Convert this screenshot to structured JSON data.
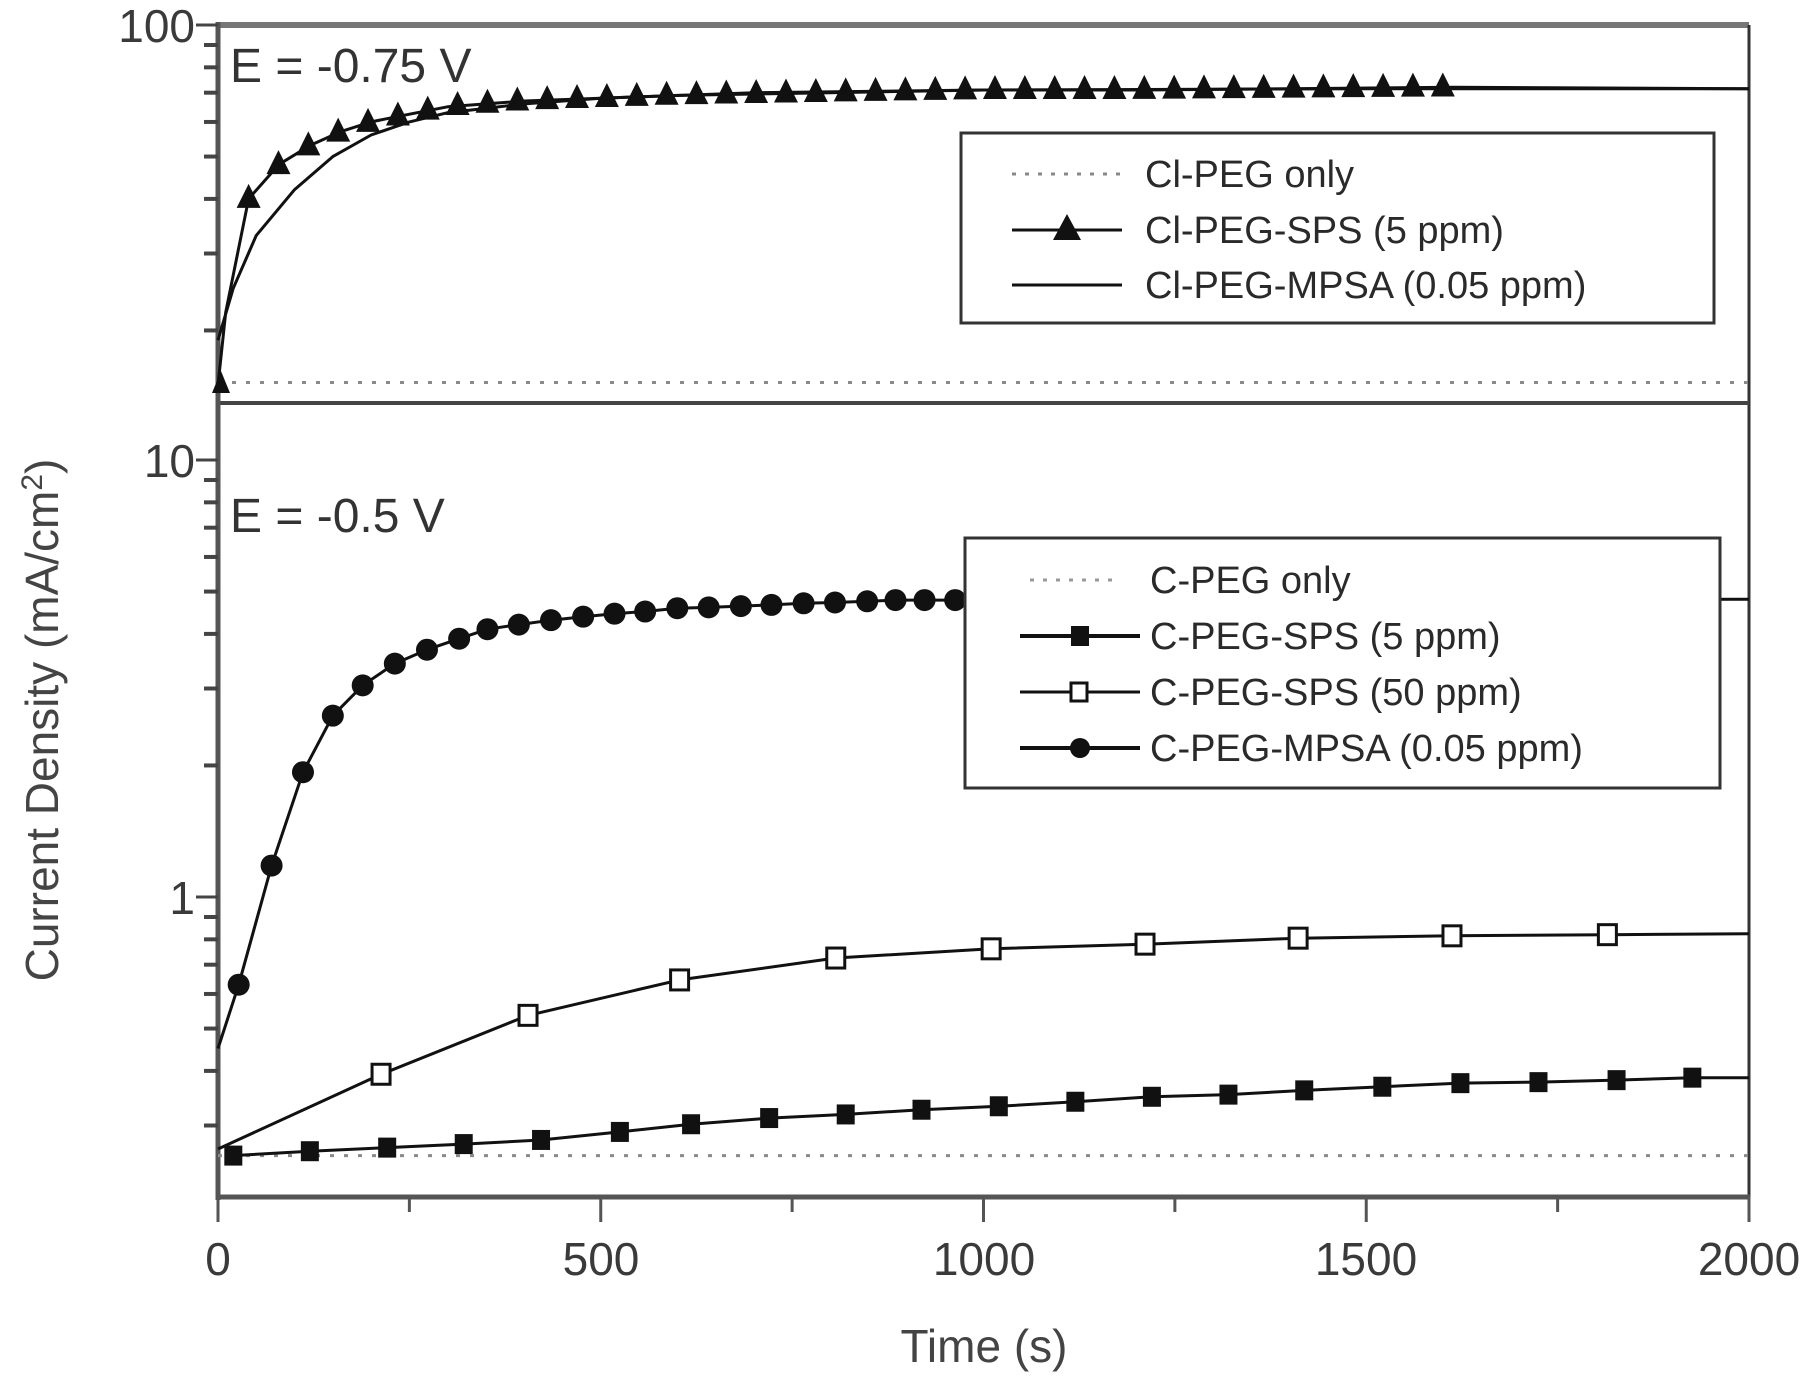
{
  "chart_data": [
    {
      "type": "line",
      "panel": "top",
      "annotation": "E = -0.75 V",
      "xlabel": "Time (s)",
      "ylabel": "Current Density (mA/cm²)",
      "yscale": "log",
      "xlim": [
        0,
        2000
      ],
      "ylim": [
        13.5,
        100
      ],
      "y_ticks": [
        "100"
      ],
      "legend_position": "upper right (inside, below plateau)",
      "series": [
        {
          "name": "Cl-PEG only",
          "style": "dotted",
          "marker": "none",
          "x": [
            0,
            2000
          ],
          "y": [
            15.2,
            15.2
          ]
        },
        {
          "name": "Cl-PEG-SPS (5 ppm)",
          "style": "solid",
          "marker": "filled-triangle",
          "x": [
            0,
            10,
            40,
            80,
            120,
            160,
            200,
            240,
            300,
            400,
            500,
            600,
            800,
            1000,
            1200,
            1400,
            1615,
            2000
          ],
          "y": [
            15,
            22,
            40,
            48,
            53,
            57,
            60,
            62,
            65,
            67,
            68,
            69,
            70,
            71,
            71,
            71.5,
            72,
            71.5
          ]
        },
        {
          "name": "Cl-PEG-MPSA (0.05 ppm)",
          "style": "solid",
          "marker": "none",
          "x": [
            0,
            20,
            50,
            100,
            150,
            200,
            250,
            300,
            400,
            500,
            700,
            1000,
            1500,
            2000
          ],
          "y": [
            19,
            25,
            33,
            42,
            50,
            56,
            60,
            63,
            66,
            68,
            70,
            71,
            71.5,
            71.5
          ]
        }
      ]
    },
    {
      "type": "line",
      "panel": "bottom",
      "annotation": "E = -0.5 V",
      "xlabel": "Time (s)",
      "ylabel": "Current Density (mA/cm²)",
      "yscale": "log",
      "xlim": [
        0,
        2000
      ],
      "ylim": [
        0.2,
        13.5
      ],
      "x_ticks": [
        "0",
        "500",
        "1000",
        "1500",
        "2000"
      ],
      "y_ticks": [
        "10",
        "1"
      ],
      "legend_position": "upper right",
      "series": [
        {
          "name": "C-PEG only",
          "style": "dotted",
          "marker": "none",
          "x": [
            0,
            2000
          ],
          "y": [
            0.256,
            0.256
          ]
        },
        {
          "name": "C-PEG-SPS (5 ppm)",
          "style": "solid",
          "marker": "filled-square",
          "x": [
            20,
            120,
            221,
            321,
            422,
            525,
            618,
            720,
            820,
            919,
            1020,
            1120,
            1220,
            1320,
            1419,
            1521,
            1623,
            1725,
            1827,
            1926,
            2000
          ],
          "y": [
            0.256,
            0.262,
            0.267,
            0.272,
            0.278,
            0.29,
            0.302,
            0.312,
            0.318,
            0.326,
            0.332,
            0.34,
            0.349,
            0.353,
            0.361,
            0.368,
            0.375,
            0.377,
            0.381,
            0.386,
            0.386
          ]
        },
        {
          "name": "C-PEG-SPS (50 ppm)",
          "style": "solid",
          "marker": "open-square",
          "x": [
            0,
            213,
            405,
            603,
            807,
            1010,
            1211,
            1411,
            1612,
            1815,
            2000
          ],
          "y": [
            0.265,
            0.393,
            0.536,
            0.646,
            0.725,
            0.761,
            0.78,
            0.805,
            0.815,
            0.82,
            0.824
          ]
        },
        {
          "name": "C-PEG-MPSA (0.05 ppm)",
          "style": "solid",
          "marker": "filled-circle",
          "x": [
            0,
            27,
            70,
            111,
            150,
            189,
            231,
            273,
            315,
            352,
            393,
            435,
            477,
            518,
            558,
            600,
            641,
            683,
            723,
            765,
            806,
            848,
            885,
            923,
            963,
            2000
          ],
          "y": [
            0.45,
            0.63,
            1.18,
            1.93,
            2.6,
            3.05,
            3.42,
            3.68,
            3.9,
            4.1,
            4.2,
            4.3,
            4.38,
            4.45,
            4.5,
            4.58,
            4.6,
            4.63,
            4.66,
            4.7,
            4.72,
            4.75,
            4.78,
            4.78,
            4.78,
            4.8
          ]
        }
      ]
    }
  ],
  "labels": {
    "x_axis_title": "Time (s)",
    "y_axis_title": "Current Density (mA/cm",
    "y_axis_sup": "2",
    "y_axis_close": ")",
    "top_annotation": "E = -0.75 V",
    "bottom_annotation": "E = -0.5 V",
    "x_ticks": [
      "0",
      "500",
      "1000",
      "1500",
      "2000"
    ],
    "top_y_tick": "100",
    "bottom_y_ticks": [
      "10",
      "1"
    ]
  },
  "legend_top": [
    "Cl-PEG only",
    "Cl-PEG-SPS (5 ppm)",
    "Cl-PEG-MPSA (0.05 ppm)"
  ],
  "legend_bottom": [
    "C-PEG only",
    "C-PEG-SPS (5 ppm)",
    "C-PEG-SPS (50 ppm)",
    "C-PEG-MPSA (0.05 ppm)"
  ],
  "colors": {
    "ink": "#111111",
    "axis": "#555555",
    "dotted": "#888888"
  }
}
